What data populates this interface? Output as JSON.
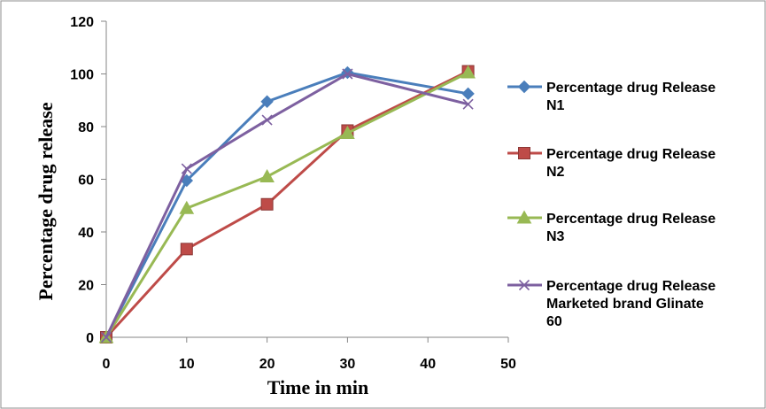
{
  "chart_data": {
    "type": "line",
    "title": "",
    "xlabel": "Time in min",
    "ylabel": "Percentage drug release",
    "xlim": [
      0,
      50
    ],
    "ylim": [
      0,
      120
    ],
    "x_ticks": [
      0,
      10,
      20,
      30,
      40,
      50
    ],
    "y_ticks": [
      0,
      20,
      40,
      60,
      80,
      100,
      120
    ],
    "grid": false,
    "legend_position": "right",
    "series": [
      {
        "name_lines": [
          "Percentage drug Release",
          "N1"
        ],
        "color": "#4a7ebb",
        "marker": "diamond",
        "x": [
          0,
          10,
          20,
          30,
          45
        ],
        "y": [
          0,
          59.5,
          89.5,
          100.5,
          92.5
        ]
      },
      {
        "name_lines": [
          "Percentage drug Release",
          "N2"
        ],
        "color": "#be4b48",
        "marker": "square",
        "x": [
          0,
          10,
          20,
          30,
          45
        ],
        "y": [
          0,
          33.5,
          50.5,
          78.5,
          101
        ]
      },
      {
        "name_lines": [
          "Percentage drug Release",
          "N3"
        ],
        "color": "#98b954",
        "marker": "triangle",
        "x": [
          0,
          10,
          20,
          30,
          45
        ],
        "y": [
          0,
          49,
          61,
          77.5,
          100.5
        ]
      },
      {
        "name_lines": [
          "Percentage drug Release",
          "Marketed brand Glinate",
          "60"
        ],
        "color": "#7d60a0",
        "marker": "x",
        "x": [
          0,
          10,
          20,
          30,
          45
        ],
        "y": [
          0,
          64,
          82.5,
          100,
          88.5
        ]
      }
    ]
  }
}
